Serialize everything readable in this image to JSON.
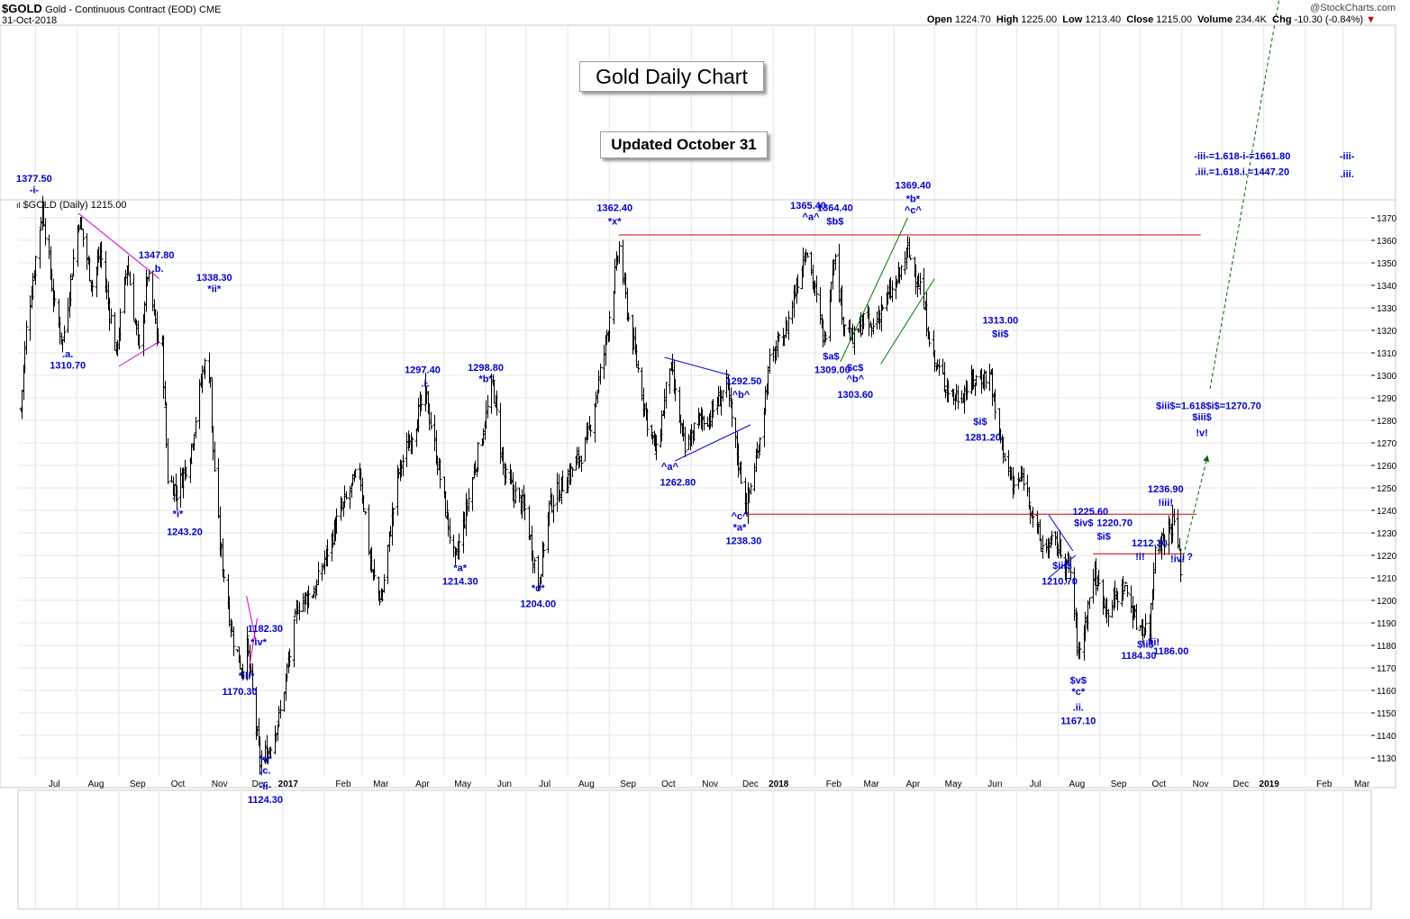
{
  "header": {
    "symbol": "$GOLD",
    "name": "Gold - Continuous Contract (EOD)",
    "exchange": "CME",
    "date": "31-Oct-2018",
    "watermark": "@StockCharts.com",
    "open_label": "Open",
    "open": "1224.70",
    "high_label": "High",
    "high": "1225.00",
    "low_label": "Low",
    "low": "1213.40",
    "close_label": "Close",
    "close": "1215.00",
    "volume_label": "Volume",
    "volume": "234.4K",
    "chg_label": "Chg",
    "chg": "-10.30 (-0.84%)",
    "chg_arrow": "▼"
  },
  "overlays": {
    "title": "Gold Daily Chart",
    "updated": "Updated October 31",
    "legend": "$GOLD (Daily) 1215.00"
  },
  "colors": {
    "price_bars": "#000000",
    "wave_labels": "#0000cc",
    "resistance_lines": "#cc0000",
    "triangle_lines": "#cc00cc",
    "channel_lines": "#007a00",
    "projection_arrow": "#006600",
    "grid": "#e4e4e4"
  },
  "chart_data": {
    "type": "ohlc",
    "title": "Gold Daily Chart",
    "ylim": [
      1122,
      1378
    ],
    "y_ticks": [
      1130,
      1140,
      1150,
      1160,
      1170,
      1180,
      1190,
      1200,
      1210,
      1220,
      1230,
      1240,
      1250,
      1260,
      1270,
      1280,
      1290,
      1300,
      1310,
      1320,
      1330,
      1340,
      1350,
      1360,
      1370
    ],
    "x_range": [
      "2016-06-18",
      "2019-03-22"
    ],
    "x_labels": [
      {
        "date": "2016-07-15",
        "label": "Jul",
        "bold": false
      },
      {
        "date": "2016-08-15",
        "label": "Aug",
        "bold": false
      },
      {
        "date": "2016-09-15",
        "label": "Sep",
        "bold": false
      },
      {
        "date": "2016-10-15",
        "label": "Oct",
        "bold": false
      },
      {
        "date": "2016-11-15",
        "label": "Nov",
        "bold": false
      },
      {
        "date": "2016-12-15",
        "label": "Dec",
        "bold": false
      },
      {
        "date": "2017-01-05",
        "label": "2017",
        "bold": true
      },
      {
        "date": "2017-02-15",
        "label": "Feb",
        "bold": false
      },
      {
        "date": "2017-03-15",
        "label": "Mar",
        "bold": false
      },
      {
        "date": "2017-04-15",
        "label": "Apr",
        "bold": false
      },
      {
        "date": "2017-05-15",
        "label": "May",
        "bold": false
      },
      {
        "date": "2017-06-15",
        "label": "Jun",
        "bold": false
      },
      {
        "date": "2017-07-15",
        "label": "Jul",
        "bold": false
      },
      {
        "date": "2017-08-15",
        "label": "Aug",
        "bold": false
      },
      {
        "date": "2017-09-15",
        "label": "Sep",
        "bold": false
      },
      {
        "date": "2017-10-15",
        "label": "Oct",
        "bold": false
      },
      {
        "date": "2017-11-15",
        "label": "Nov",
        "bold": false
      },
      {
        "date": "2017-12-15",
        "label": "Dec",
        "bold": false
      },
      {
        "date": "2018-01-05",
        "label": "2018",
        "bold": true
      },
      {
        "date": "2018-02-15",
        "label": "Feb",
        "bold": false
      },
      {
        "date": "2018-03-15",
        "label": "Mar",
        "bold": false
      },
      {
        "date": "2018-04-15",
        "label": "Apr",
        "bold": false
      },
      {
        "date": "2018-05-15",
        "label": "May",
        "bold": false
      },
      {
        "date": "2018-06-15",
        "label": "Jun",
        "bold": false
      },
      {
        "date": "2018-07-15",
        "label": "Jul",
        "bold": false
      },
      {
        "date": "2018-08-15",
        "label": "Aug",
        "bold": false
      },
      {
        "date": "2018-09-15",
        "label": "Sep",
        "bold": false
      },
      {
        "date": "2018-10-15",
        "label": "Oct",
        "bold": false
      },
      {
        "date": "2018-11-15",
        "label": "Nov",
        "bold": false
      },
      {
        "date": "2018-12-15",
        "label": "Dec",
        "bold": false
      },
      {
        "date": "2019-01-05",
        "label": "2019",
        "bold": true
      },
      {
        "date": "2019-02-15",
        "label": "Feb",
        "bold": false
      },
      {
        "date": "2019-03-15",
        "label": "Mar",
        "bold": false
      }
    ],
    "grid_dates": [
      "2016-07-01",
      "2016-08-01",
      "2016-09-01",
      "2016-10-01",
      "2016-11-01",
      "2016-12-01",
      "2017-01-01",
      "2017-02-01",
      "2017-03-01",
      "2017-04-01",
      "2017-05-01",
      "2017-06-01",
      "2017-07-01",
      "2017-08-01",
      "2017-09-01",
      "2017-10-01",
      "2017-11-01",
      "2017-12-01",
      "2018-01-01",
      "2018-02-01",
      "2018-03-01",
      "2018-04-01",
      "2018-05-01",
      "2018-06-01",
      "2018-07-01",
      "2018-08-01",
      "2018-09-01",
      "2018-10-01",
      "2018-11-01",
      "2018-12-01",
      "2019-01-01",
      "2019-02-01",
      "2019-03-01"
    ],
    "price_path": [
      [
        "2016-06-20",
        1285
      ],
      [
        "2016-06-24",
        1320
      ],
      [
        "2016-07-06",
        1375
      ],
      [
        "2016-07-15",
        1330
      ],
      [
        "2016-07-21",
        1315
      ],
      [
        "2016-08-02",
        1370
      ],
      [
        "2016-08-12",
        1340
      ],
      [
        "2016-08-18",
        1355
      ],
      [
        "2016-08-30",
        1310
      ],
      [
        "2016-09-07",
        1350
      ],
      [
        "2016-09-16",
        1310
      ],
      [
        "2016-09-22",
        1345
      ],
      [
        "2016-09-30",
        1315
      ],
      [
        "2016-10-03",
        1313
      ],
      [
        "2016-10-07",
        1255
      ],
      [
        "2016-10-14",
        1248
      ],
      [
        "2016-10-24",
        1265
      ],
      [
        "2016-11-03",
        1305
      ],
      [
        "2016-11-08",
        1300
      ],
      [
        "2016-11-09",
        1275
      ],
      [
        "2016-11-15",
        1225
      ],
      [
        "2016-11-24",
        1185
      ],
      [
        "2016-12-01",
        1170
      ],
      [
        "2016-12-05",
        1180
      ],
      [
        "2016-12-15",
        1128
      ],
      [
        "2016-12-21",
        1133
      ],
      [
        "2016-12-30",
        1150
      ],
      [
        "2017-01-12",
        1198
      ],
      [
        "2017-01-25",
        1205
      ],
      [
        "2017-02-10",
        1235
      ],
      [
        "2017-02-27",
        1258
      ],
      [
        "2017-03-08",
        1213
      ],
      [
        "2017-03-15",
        1200
      ],
      [
        "2017-03-27",
        1255
      ],
      [
        "2017-04-17",
        1292
      ],
      [
        "2017-04-25",
        1265
      ],
      [
        "2017-05-09",
        1216
      ],
      [
        "2017-05-24",
        1260
      ],
      [
        "2017-06-06",
        1296
      ],
      [
        "2017-06-15",
        1255
      ],
      [
        "2017-06-30",
        1240
      ],
      [
        "2017-07-10",
        1207
      ],
      [
        "2017-07-18",
        1242
      ],
      [
        "2017-08-08",
        1262
      ],
      [
        "2017-08-15",
        1270
      ],
      [
        "2017-08-28",
        1310
      ],
      [
        "2017-09-08",
        1357
      ],
      [
        "2017-09-15",
        1325
      ],
      [
        "2017-09-29",
        1280
      ],
      [
        "2017-10-06",
        1265
      ],
      [
        "2017-10-16",
        1305
      ],
      [
        "2017-10-27",
        1266
      ],
      [
        "2017-11-06",
        1280
      ],
      [
        "2017-11-15",
        1282
      ],
      [
        "2017-11-27",
        1296
      ],
      [
        "2017-12-05",
        1265
      ],
      [
        "2017-12-12",
        1242
      ],
      [
        "2017-12-20",
        1265
      ],
      [
        "2017-12-29",
        1305
      ],
      [
        "2018-01-10",
        1320
      ],
      [
        "2018-01-25",
        1358
      ],
      [
        "2018-02-08",
        1315
      ],
      [
        "2018-02-15",
        1355
      ],
      [
        "2018-02-22",
        1325
      ],
      [
        "2018-03-01",
        1315
      ],
      [
        "2018-03-09",
        1325
      ],
      [
        "2018-03-15",
        1320
      ],
      [
        "2018-03-22",
        1330
      ],
      [
        "2018-04-02",
        1340
      ],
      [
        "2018-04-11",
        1355
      ],
      [
        "2018-04-20",
        1340
      ],
      [
        "2018-05-01",
        1305
      ],
      [
        "2018-05-15",
        1290
      ],
      [
        "2018-05-21",
        1292
      ],
      [
        "2018-05-31",
        1298
      ],
      [
        "2018-06-12",
        1300
      ],
      [
        "2018-06-15",
        1282
      ],
      [
        "2018-06-28",
        1250
      ],
      [
        "2018-07-06",
        1255
      ],
      [
        "2018-07-19",
        1224
      ],
      [
        "2018-07-31",
        1225
      ],
      [
        "2018-08-10",
        1213
      ],
      [
        "2018-08-16",
        1175
      ],
      [
        "2018-08-22",
        1194
      ],
      [
        "2018-08-27",
        1212
      ],
      [
        "2018-09-07",
        1196
      ],
      [
        "2018-09-19",
        1207
      ],
      [
        "2018-09-28",
        1190
      ],
      [
        "2018-10-08",
        1187
      ],
      [
        "2018-10-12",
        1225
      ],
      [
        "2018-10-19",
        1228
      ],
      [
        "2018-10-26",
        1236
      ],
      [
        "2018-10-31",
        1215
      ]
    ],
    "resistance_lines": [
      {
        "from": [
          "2017-09-08",
          1362.4
        ],
        "to": [
          "2018-11-15",
          1362.4
        ]
      },
      {
        "from": [
          "2017-12-12",
          1238.3
        ],
        "to": [
          "2018-11-12",
          1238.3
        ]
      },
      {
        "from": [
          "2018-08-27",
          1220.7
        ],
        "to": [
          "2018-11-03",
          1220.7
        ]
      }
    ],
    "triangle_lines": [
      {
        "from": [
          "2016-08-02",
          1372
        ],
        "to": [
          "2016-10-01",
          1343
        ]
      },
      {
        "from": [
          "2016-09-01",
          1304
        ],
        "to": [
          "2016-10-01",
          1315
        ]
      },
      {
        "from": [
          "2016-12-05",
          1202
        ],
        "to": [
          "2016-12-12",
          1182
        ]
      },
      {
        "from": [
          "2016-12-07",
          1170
        ],
        "to": [
          "2016-12-13",
          1192
        ]
      }
    ],
    "channel_lines": [
      {
        "from": [
          "2018-02-20",
          1306
        ],
        "to": [
          "2018-04-11",
          1370
        ]
      },
      {
        "from": [
          "2018-03-22",
          1305
        ],
        "to": [
          "2018-05-01",
          1343
        ]
      }
    ],
    "wedge_lines": [
      {
        "from": [
          "2017-10-12",
          1308
        ],
        "to": [
          "2017-11-30",
          1300
        ]
      },
      {
        "from": [
          "2017-10-20",
          1262
        ],
        "to": [
          "2017-12-15",
          1278
        ]
      },
      {
        "from": [
          "2018-07-25",
          1238
        ],
        "to": [
          "2018-08-12",
          1222
        ]
      },
      {
        "from": [
          "2018-07-25",
          1210
        ],
        "to": [
          "2018-08-14",
          1220
        ]
      }
    ],
    "projections": [
      {
        "from": [
          "2018-11-01",
          1217
        ],
        "to": [
          "2018-11-20",
          1264
        ],
        "style": "dashed-arrow"
      },
      {
        "from": [
          "2018-11-22",
          1294
        ],
        "to": [
          "2019-03-01",
          1627
        ],
        "style": "dashed-arrow"
      }
    ],
    "annotations": [
      {
        "date": "2016-06-30",
        "price": 1386,
        "text": "1377.50"
      },
      {
        "date": "2016-06-30",
        "price": 1381,
        "text": "-i-"
      },
      {
        "date": "2016-09-29",
        "price": 1352,
        "text": "1347.80"
      },
      {
        "date": "2016-09-30",
        "price": 1346,
        "text": ".b."
      },
      {
        "date": "2016-07-25",
        "price": 1308,
        "text": ".a."
      },
      {
        "date": "2016-07-25",
        "price": 1303,
        "text": "1310.70"
      },
      {
        "date": "2016-11-11",
        "price": 1342,
        "text": "1338.30"
      },
      {
        "date": "2016-11-11",
        "price": 1337,
        "text": "*ii*"
      },
      {
        "date": "2016-10-15",
        "price": 1237,
        "text": "*i*"
      },
      {
        "date": "2016-10-20",
        "price": 1229,
        "text": "1243.20"
      },
      {
        "date": "2016-12-19",
        "price": 1186,
        "text": "1182.30"
      },
      {
        "date": "2016-12-14",
        "price": 1180,
        "text": "*iv*"
      },
      {
        "date": "2016-12-05",
        "price": 1165,
        "text": "*iii*"
      },
      {
        "date": "2016-11-30",
        "price": 1158,
        "text": "1170.30"
      },
      {
        "date": "2016-12-19",
        "price": 1128,
        "text": "*v*"
      },
      {
        "date": "2016-12-19",
        "price": 1123,
        "text": ".c."
      },
      {
        "date": "2016-12-19",
        "price": 1116,
        "text": "-ii-"
      },
      {
        "date": "2016-12-19",
        "price": 1110,
        "text": "1124.30"
      },
      {
        "date": "2017-04-15",
        "price": 1301,
        "text": "1297.40"
      },
      {
        "date": "2017-04-17",
        "price": 1295,
        "text": ".i."
      },
      {
        "date": "2017-05-13",
        "price": 1213,
        "text": "*a*"
      },
      {
        "date": "2017-05-13",
        "price": 1207,
        "text": "1214.30"
      },
      {
        "date": "2017-06-01",
        "price": 1302,
        "text": "1298.80"
      },
      {
        "date": "2017-06-01",
        "price": 1297,
        "text": "*b*"
      },
      {
        "date": "2017-07-10",
        "price": 1204,
        "text": "*c*"
      },
      {
        "date": "2017-07-10",
        "price": 1197,
        "text": "1204.00"
      },
      {
        "date": "2017-09-05",
        "price": 1373,
        "text": "1362.40"
      },
      {
        "date": "2017-09-05",
        "price": 1367,
        "text": "*x*"
      },
      {
        "date": "2017-10-16",
        "price": 1258,
        "text": "^a^"
      },
      {
        "date": "2017-10-22",
        "price": 1251,
        "text": "1262.80"
      },
      {
        "date": "2017-12-10",
        "price": 1296,
        "text": "1292.50"
      },
      {
        "date": "2017-12-08",
        "price": 1290,
        "text": "^b^"
      },
      {
        "date": "2017-12-07",
        "price": 1236,
        "text": "^c^"
      },
      {
        "date": "2017-12-07",
        "price": 1231,
        "text": "*a*"
      },
      {
        "date": "2017-12-10",
        "price": 1225,
        "text": "1238.30"
      },
      {
        "date": "2018-01-27",
        "price": 1374,
        "text": "1365.40"
      },
      {
        "date": "2018-01-29",
        "price": 1369,
        "text": "^a^"
      },
      {
        "date": "2018-02-16",
        "price": 1373,
        "text": "1364.40"
      },
      {
        "date": "2018-02-16",
        "price": 1367,
        "text": "$b$"
      },
      {
        "date": "2018-02-13",
        "price": 1307,
        "text": "$a$"
      },
      {
        "date": "2018-02-14",
        "price": 1301,
        "text": "1309.00"
      },
      {
        "date": "2018-03-03",
        "price": 1302,
        "text": "$c$"
      },
      {
        "date": "2018-03-03",
        "price": 1297,
        "text": "^b^"
      },
      {
        "date": "2018-03-03",
        "price": 1290,
        "text": "1303.60"
      },
      {
        "date": "2018-04-15",
        "price": 1383,
        "text": "1369.40"
      },
      {
        "date": "2018-04-15",
        "price": 1377,
        "text": "*b*"
      },
      {
        "date": "2018-04-15",
        "price": 1372,
        "text": "^c^"
      },
      {
        "date": "2018-06-19",
        "price": 1323,
        "text": "1313.00"
      },
      {
        "date": "2018-06-19",
        "price": 1317,
        "text": "$ii$"
      },
      {
        "date": "2018-06-04",
        "price": 1278,
        "text": "$i$"
      },
      {
        "date": "2018-06-06",
        "price": 1271,
        "text": "1281.20"
      },
      {
        "date": "2018-08-25",
        "price": 1238,
        "text": "1225.60"
      },
      {
        "date": "2018-08-20",
        "price": 1233,
        "text": "$iv$"
      },
      {
        "date": "2018-09-12",
        "price": 1233,
        "text": "1220.70"
      },
      {
        "date": "2018-09-04",
        "price": 1227,
        "text": "$i$"
      },
      {
        "date": "2018-08-04",
        "price": 1214,
        "text": "$iii$"
      },
      {
        "date": "2018-08-02",
        "price": 1207,
        "text": "1210.70"
      },
      {
        "date": "2018-08-16",
        "price": 1163,
        "text": "$v$"
      },
      {
        "date": "2018-08-16",
        "price": 1158,
        "text": "*c*"
      },
      {
        "date": "2018-08-16",
        "price": 1151,
        "text": ".ii."
      },
      {
        "date": "2018-08-16",
        "price": 1145,
        "text": "1167.10"
      },
      {
        "date": "2018-10-08",
        "price": 1224,
        "text": "1212.30"
      },
      {
        "date": "2018-10-01",
        "price": 1218,
        "text": "!i!"
      },
      {
        "date": "2018-10-05",
        "price": 1179,
        "text": "$ii$"
      },
      {
        "date": "2018-10-11",
        "price": 1180,
        "text": "!ii!"
      },
      {
        "date": "2018-09-30",
        "price": 1174,
        "text": "1184.30"
      },
      {
        "date": "2018-10-24",
        "price": 1176,
        "text": "1186.00"
      },
      {
        "date": "2018-10-20",
        "price": 1248,
        "text": "1236.90"
      },
      {
        "date": "2018-10-20",
        "price": 1242,
        "text": "!iii!"
      },
      {
        "date": "2018-10-29",
        "price": 1217,
        "text": "!iv!"
      },
      {
        "date": "2018-11-07",
        "price": 1218,
        "text": "?"
      },
      {
        "date": "2018-11-21",
        "price": 1285,
        "text": "$iii$=1.618$i$=1270.70"
      },
      {
        "date": "2018-11-16",
        "price": 1280,
        "text": "$iii$"
      },
      {
        "date": "2018-11-16",
        "price": 1273,
        "text": "!v!"
      },
      {
        "date": "2018-12-16",
        "price": 1396,
        "text": "-iii-=1.618-i-=1661.80"
      },
      {
        "date": "2019-03-04",
        "price": 1396,
        "text": "-iii-"
      },
      {
        "date": "2018-12-16",
        "price": 1389,
        "text": ".iii.=1.618.i.=1447.20"
      },
      {
        "date": "2019-03-04",
        "price": 1388,
        "text": ".iii."
      }
    ]
  }
}
